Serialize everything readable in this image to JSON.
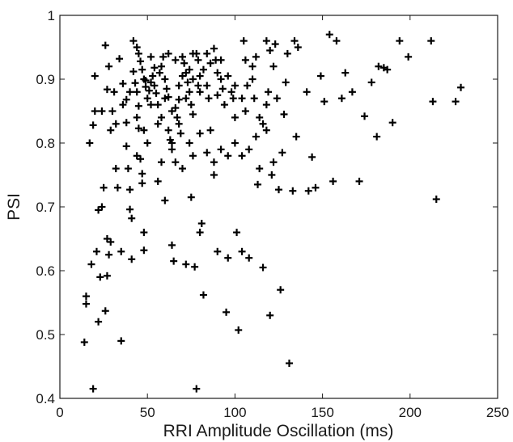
{
  "chart_data": {
    "type": "scatter",
    "title": "",
    "xlabel": "RRI Amplitude Oscillation (ms)",
    "ylabel": "PSI",
    "xlim": [
      0,
      250
    ],
    "ylim": [
      0.4,
      1.0
    ],
    "xticks": [
      "0",
      "50",
      "100",
      "150",
      "200",
      "250"
    ],
    "yticks": [
      "0.4",
      "0.5",
      "0.6",
      "0.7",
      "0.8",
      "0.9",
      "1"
    ],
    "grid": false,
    "legend": "none",
    "marker": "+",
    "marker_color": "#000000",
    "series": [
      {
        "points": [
          [
            14,
            0.488
          ],
          [
            15,
            0.56
          ],
          [
            15,
            0.548
          ],
          [
            17,
            0.8
          ],
          [
            18,
            0.61
          ],
          [
            19,
            0.828
          ],
          [
            19,
            0.415
          ],
          [
            20,
            0.905
          ],
          [
            20,
            0.85
          ],
          [
            21,
            0.63
          ],
          [
            22,
            0.52
          ],
          [
            22,
            0.695
          ],
          [
            23,
            0.59
          ],
          [
            24,
            0.7
          ],
          [
            25,
            0.73
          ],
          [
            26,
            0.537
          ],
          [
            27,
            0.592
          ],
          [
            27,
            0.65
          ],
          [
            28,
            0.625
          ],
          [
            29,
            0.645
          ],
          [
            26,
            0.953
          ],
          [
            28,
            0.92
          ],
          [
            27,
            0.884
          ],
          [
            24,
            0.85
          ],
          [
            29,
            0.82
          ],
          [
            31,
            0.88
          ],
          [
            32,
            0.76
          ],
          [
            33,
            0.73
          ],
          [
            35,
            0.49
          ],
          [
            35,
            0.63
          ],
          [
            34,
            0.932
          ],
          [
            36,
            0.893
          ],
          [
            38,
            0.868
          ],
          [
            38,
            0.832
          ],
          [
            38,
            0.795
          ],
          [
            39,
            0.76
          ],
          [
            40,
            0.727
          ],
          [
            40,
            0.696
          ],
          [
            41,
            0.682
          ],
          [
            41,
            0.618
          ],
          [
            42,
            0.912
          ],
          [
            43,
            0.894
          ],
          [
            44,
            0.88
          ],
          [
            45,
            0.858
          ],
          [
            45,
            0.823
          ],
          [
            46,
            0.775
          ],
          [
            47,
            0.752
          ],
          [
            47,
            0.737
          ],
          [
            48,
            0.66
          ],
          [
            48,
            0.632
          ],
          [
            42,
            0.96
          ],
          [
            44,
            0.95
          ],
          [
            45,
            0.94
          ],
          [
            46,
            0.928
          ],
          [
            47,
            0.915
          ],
          [
            48,
            0.9
          ],
          [
            49,
            0.888
          ],
          [
            50,
            0.87
          ],
          [
            51,
            0.882
          ],
          [
            52,
            0.895
          ],
          [
            53,
            0.905
          ],
          [
            54,
            0.89
          ],
          [
            55,
            0.878
          ],
          [
            56,
            0.86
          ],
          [
            57,
            0.91
          ],
          [
            58,
            0.92
          ],
          [
            59,
            0.935
          ],
          [
            60,
            0.9
          ],
          [
            61,
            0.885
          ],
          [
            62,
            0.872
          ],
          [
            60,
            0.71
          ],
          [
            62,
            0.82
          ],
          [
            63,
            0.805
          ],
          [
            64,
            0.79
          ],
          [
            64,
            0.64
          ],
          [
            65,
            0.615
          ],
          [
            66,
            0.855
          ],
          [
            67,
            0.84
          ],
          [
            68,
            0.83
          ],
          [
            69,
            0.815
          ],
          [
            70,
            0.935
          ],
          [
            71,
            0.925
          ],
          [
            72,
            0.91
          ],
          [
            73,
            0.895
          ],
          [
            74,
            0.88
          ],
          [
            75,
            0.86
          ],
          [
            76,
            0.845
          ],
          [
            72,
            0.61
          ],
          [
            75,
            0.715
          ],
          [
            77,
            0.606
          ],
          [
            78,
            0.94
          ],
          [
            79,
            0.93
          ],
          [
            80,
            0.905
          ],
          [
            80,
            0.66
          ],
          [
            81,
            0.674
          ],
          [
            82,
            0.562
          ],
          [
            78,
            0.415
          ],
          [
            84,
            0.89
          ],
          [
            85,
            0.87
          ],
          [
            86,
            0.82
          ],
          [
            88,
            0.948
          ],
          [
            89,
            0.93
          ],
          [
            90,
            0.91
          ],
          [
            88,
            0.75
          ],
          [
            90,
            0.63
          ],
          [
            92,
            0.9
          ],
          [
            93,
            0.885
          ],
          [
            94,
            0.86
          ],
          [
            95,
            0.535
          ],
          [
            96,
            0.62
          ],
          [
            98,
            0.88
          ],
          [
            99,
            0.87
          ],
          [
            100,
            0.84
          ],
          [
            101,
            0.66
          ],
          [
            102,
            0.507
          ],
          [
            104,
            0.63
          ],
          [
            105,
            0.96
          ],
          [
            106,
            0.93
          ],
          [
            107,
            0.89
          ],
          [
            108,
            0.62
          ],
          [
            110,
            0.9
          ],
          [
            111,
            0.87
          ],
          [
            112,
            0.935
          ],
          [
            113,
            0.735
          ],
          [
            114,
            0.76
          ],
          [
            116,
            0.605
          ],
          [
            118,
            0.96
          ],
          [
            119,
            0.88
          ],
          [
            120,
            0.53
          ],
          [
            121,
            0.75
          ],
          [
            122,
            0.77
          ],
          [
            123,
            0.955
          ],
          [
            124,
            0.87
          ],
          [
            125,
            0.727
          ],
          [
            126,
            0.57
          ],
          [
            127,
            0.785
          ],
          [
            128,
            0.845
          ],
          [
            129,
            0.895
          ],
          [
            130,
            0.94
          ],
          [
            131,
            0.455
          ],
          [
            133,
            0.725
          ],
          [
            134,
            0.96
          ],
          [
            135,
            0.81
          ],
          [
            136,
            0.95
          ],
          [
            141,
            0.88
          ],
          [
            142,
            0.725
          ],
          [
            144,
            0.778
          ],
          [
            146,
            0.73
          ],
          [
            149,
            0.905
          ],
          [
            151,
            0.865
          ],
          [
            154,
            0.97
          ],
          [
            156,
            0.74
          ],
          [
            158,
            0.96
          ],
          [
            161,
            0.87
          ],
          [
            163,
            0.91
          ],
          [
            167,
            0.88
          ],
          [
            171,
            0.74
          ],
          [
            174,
            0.842
          ],
          [
            178,
            0.895
          ],
          [
            181,
            0.81
          ],
          [
            182,
            0.92
          ],
          [
            185,
            0.918
          ],
          [
            187,
            0.915
          ],
          [
            190,
            0.832
          ],
          [
            194,
            0.96
          ],
          [
            199,
            0.935
          ],
          [
            212,
            0.96
          ],
          [
            213,
            0.865
          ],
          [
            215,
            0.712
          ],
          [
            226,
            0.865
          ],
          [
            229,
            0.887
          ],
          [
            49,
            0.898
          ],
          [
            52,
            0.935
          ],
          [
            54,
            0.918
          ],
          [
            58,
            0.84
          ],
          [
            62,
            0.94
          ],
          [
            66,
            0.93
          ],
          [
            68,
            0.868
          ],
          [
            70,
            0.905
          ],
          [
            74,
            0.915
          ],
          [
            76,
            0.94
          ],
          [
            79,
            0.89
          ],
          [
            82,
            0.915
          ],
          [
            84,
            0.94
          ],
          [
            86,
            0.925
          ],
          [
            90,
            0.875
          ],
          [
            92,
            0.93
          ],
          [
            96,
            0.905
          ],
          [
            100,
            0.89
          ],
          [
            104,
            0.87
          ],
          [
            106,
            0.85
          ],
          [
            110,
            0.92
          ],
          [
            114,
            0.84
          ],
          [
            118,
            0.86
          ],
          [
            120,
            0.945
          ],
          [
            122,
            0.92
          ],
          [
            44,
            0.78
          ],
          [
            50,
            0.8
          ],
          [
            56,
            0.74
          ],
          [
            58,
            0.77
          ],
          [
            64,
            0.8
          ],
          [
            66,
            0.77
          ],
          [
            70,
            0.76
          ],
          [
            74,
            0.8
          ],
          [
            76,
            0.78
          ],
          [
            80,
            0.815
          ],
          [
            84,
            0.785
          ],
          [
            88,
            0.77
          ],
          [
            92,
            0.79
          ],
          [
            96,
            0.78
          ],
          [
            100,
            0.8
          ],
          [
            104,
            0.78
          ],
          [
            108,
            0.79
          ],
          [
            112,
            0.81
          ],
          [
            116,
            0.83
          ],
          [
            118,
            0.82
          ],
          [
            30,
            0.85
          ],
          [
            32,
            0.83
          ],
          [
            36,
            0.86
          ],
          [
            40,
            0.88
          ],
          [
            44,
            0.84
          ],
          [
            48,
            0.82
          ],
          [
            52,
            0.86
          ],
          [
            56,
            0.83
          ],
          [
            60,
            0.87
          ],
          [
            64,
            0.85
          ],
          [
            68,
            0.89
          ],
          [
            72,
            0.87
          ],
          [
            76,
            0.9
          ],
          [
            80,
            0.88
          ]
        ]
      }
    ]
  }
}
